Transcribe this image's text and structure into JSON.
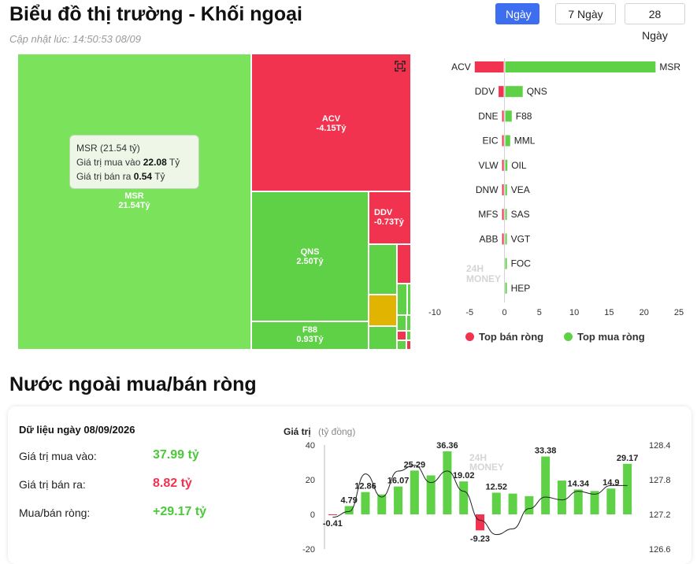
{
  "header": {
    "title": "Biểu đồ thị trường - Khối ngoại",
    "updated": "Cập nhật lúc: 14:50:53 08/09",
    "tabs": [
      "Ngày",
      "7 Ngày",
      "28 Ngày"
    ],
    "active_tab": "Ngày"
  },
  "colors": {
    "buy": "#5fd146",
    "sell": "#f2334f",
    "neutral": "#e0b400",
    "accent": "#3d6ef0"
  },
  "watermark": {
    "line1": "24H",
    "line2": "MONEY"
  },
  "treemap": {
    "tiles": [
      {
        "code": "MSR",
        "value": "21.54Tỷ",
        "side": "buy"
      },
      {
        "code": "ACV",
        "value": "-4.15Tỷ",
        "side": "sell"
      },
      {
        "code": "QNS",
        "value": "2.50Tỷ",
        "side": "buy"
      },
      {
        "code": "DDV",
        "value": "-0.73Tỷ",
        "side": "sell"
      },
      {
        "code": "F88",
        "value": "0.93Tỷ",
        "side": "buy"
      }
    ],
    "tooltip": {
      "title": "MSR (21.54 tỷ)",
      "buy_label": "Giá trị mua vào",
      "buy_value": "22.08",
      "sell_label": "Giá trị bán ra",
      "sell_value": "0.54",
      "unit": "Tỷ"
    }
  },
  "chart_data": [
    {
      "type": "bar",
      "orientation": "horizontal",
      "xlim": [
        -10,
        25
      ],
      "xticks": [
        -10,
        -5,
        0,
        5,
        10,
        15,
        20,
        25
      ],
      "legend": [
        "Top bán ròng",
        "Top mua ròng"
      ],
      "legend_position": "bottom",
      "rows": [
        {
          "sell_code": "ACV",
          "sell": -4.15,
          "buy_code": "MSR",
          "buy": 21.54
        },
        {
          "sell_code": "DDV",
          "sell": -0.73,
          "buy_code": "QNS",
          "buy": 2.5
        },
        {
          "sell_code": "DNE",
          "sell": -0.12,
          "buy_code": "F88",
          "buy": 0.93
        },
        {
          "sell_code": "EIC",
          "sell": -0.08,
          "buy_code": "MML",
          "buy": 0.7
        },
        {
          "sell_code": "VLW",
          "sell": -0.05,
          "buy_code": "OIL",
          "buy": 0.3
        },
        {
          "sell_code": "DNW",
          "sell": -0.04,
          "buy_code": "VEA",
          "buy": 0.25
        },
        {
          "sell_code": "MFS",
          "sell": -0.03,
          "buy_code": "SAS",
          "buy": 0.2
        },
        {
          "sell_code": "ABB",
          "sell": -0.03,
          "buy_code": "VGT",
          "buy": 0.15
        },
        {
          "sell_code": "",
          "sell": 0,
          "buy_code": "FOC",
          "buy": 0.1
        },
        {
          "sell_code": "",
          "sell": 0,
          "buy_code": "HEP",
          "buy": 0.08
        }
      ]
    },
    {
      "type": "bar",
      "ylabel": "Giá trị",
      "ylabel_unit": "(tỷ đồng)",
      "ylim": [
        -20,
        40
      ],
      "yticks": [
        -20,
        0,
        20,
        40
      ],
      "y2lim": [
        126.6,
        128.4
      ],
      "y2ticks": [
        126.6,
        127.2,
        127.8,
        128.4
      ],
      "values": [
        -0.41,
        4.79,
        12.86,
        11.5,
        16.07,
        25.29,
        22.5,
        36.36,
        19.02,
        -9.23,
        12.52,
        12.0,
        10.5,
        33.38,
        19.5,
        14.34,
        13.5,
        14.9,
        29.17
      ],
      "labels": [
        "-0.41",
        "4.79",
        "12.86",
        "",
        "16.07",
        "25.29",
        "",
        "36.36",
        "19.02",
        "-9.23",
        "12.52",
        "",
        "",
        "33.38",
        "",
        "14.34",
        "",
        "14.9",
        "29.17"
      ],
      "index_line": [
        127.15,
        127.25,
        127.9,
        127.5,
        127.95,
        128.05,
        127.75,
        127.95,
        127.6,
        127.1,
        126.85,
        126.95,
        127.3,
        127.5,
        127.45,
        127.6,
        127.55,
        127.7,
        127.7
      ]
    }
  ],
  "summary": {
    "date_header": "Dữ liệu ngày 08/09/2026",
    "buy_label": "Giá trị mua vào:",
    "buy_value": "37.99 tỷ",
    "sell_label": "Giá trị bán ra:",
    "sell_value": "8.82 tỷ",
    "net_label": "Mua/bán ròng:",
    "net_value": "+29.17 tỷ"
  },
  "sections": {
    "net_title": "Nước ngoài mua/bán ròng"
  }
}
